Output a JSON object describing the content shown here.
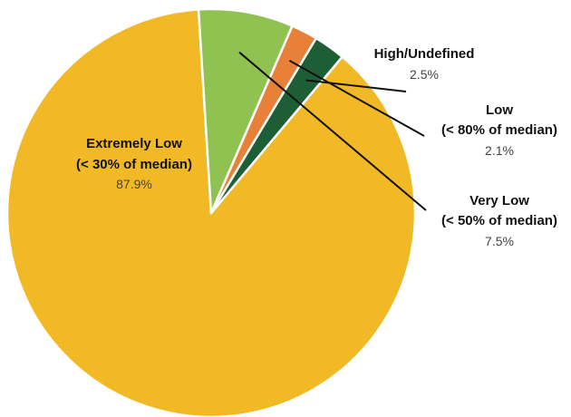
{
  "chart_data": {
    "type": "pie",
    "slices": [
      {
        "name": "Extremely Low",
        "detail": "(< 30% of median)",
        "value": 87.9,
        "value_label": "87.9%",
        "color": "#F2B927"
      },
      {
        "name": "Very Low",
        "detail": "(< 50% of median)",
        "value": 7.5,
        "value_label": "7.5%",
        "color": "#8FC251"
      },
      {
        "name": "Low",
        "detail": "(< 80% of median)",
        "value": 2.1,
        "value_label": "2.1%",
        "color": "#E8803A"
      },
      {
        "name": "High/Undefined",
        "detail": "",
        "value": 2.5,
        "value_label": "2.5%",
        "color": "#1E5E37"
      }
    ],
    "separator_color": "#ffffff",
    "leader_color": "#111111"
  }
}
